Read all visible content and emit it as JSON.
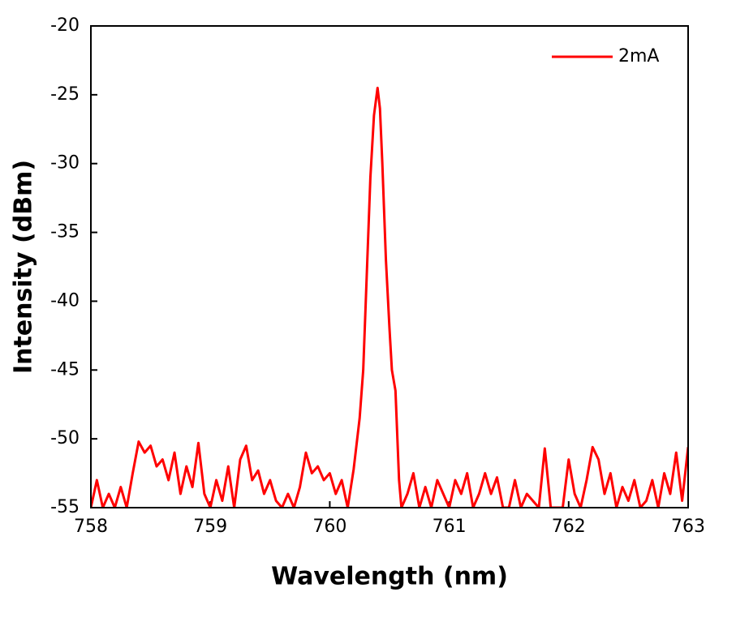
{
  "chart_data": {
    "type": "line",
    "xlabel": "Wavelength (nm)",
    "ylabel": "Intensity (dBm)",
    "x": [
      758.0,
      758.05,
      758.1,
      758.15,
      758.2,
      758.25,
      758.3,
      758.35,
      758.4,
      758.45,
      758.5,
      758.55,
      758.6,
      758.65,
      758.7,
      758.75,
      758.8,
      758.85,
      758.9,
      758.95,
      759.0,
      759.05,
      759.1,
      759.15,
      759.2,
      759.25,
      759.3,
      759.35,
      759.4,
      759.45,
      759.5,
      759.55,
      759.6,
      759.65,
      759.7,
      759.75,
      759.8,
      759.85,
      759.9,
      759.95,
      760.0,
      760.05,
      760.1,
      760.15,
      760.2,
      760.25,
      760.28,
      760.31,
      760.34,
      760.37,
      760.4,
      760.42,
      760.44,
      760.47,
      760.5,
      760.52,
      760.55,
      760.58,
      760.6,
      760.65,
      760.7,
      760.75,
      760.8,
      760.85,
      760.9,
      760.95,
      761.0,
      761.05,
      761.1,
      761.15,
      761.2,
      761.25,
      761.3,
      761.35,
      761.4,
      761.45,
      761.5,
      761.55,
      761.6,
      761.65,
      761.7,
      761.75,
      761.8,
      761.85,
      761.9,
      761.95,
      762.0,
      762.05,
      762.1,
      762.15,
      762.2,
      762.25,
      762.3,
      762.35,
      762.4,
      762.45,
      762.5,
      762.55,
      762.6,
      762.65,
      762.7,
      762.75,
      762.8,
      762.85,
      762.9,
      762.95,
      763.0
    ],
    "series": [
      {
        "name": "2mA",
        "color": "#ff0000",
        "values": [
          -55,
          -53,
          -55,
          -54,
          -55,
          -53.5,
          -55,
          -52.5,
          -50.2,
          -51,
          -50.5,
          -52,
          -51.5,
          -53,
          -51,
          -54,
          -52,
          -53.5,
          -50.3,
          -54,
          -55,
          -53,
          -54.5,
          -52,
          -55,
          -51.5,
          -50.5,
          -53,
          -52.3,
          -54,
          -53,
          -54.5,
          -55,
          -54,
          -55,
          -53.5,
          -51,
          -52.5,
          -52,
          -53,
          -52.5,
          -54,
          -53,
          -55,
          -52.2,
          -48.5,
          -45,
          -38,
          -31,
          -26.5,
          -24.5,
          -26,
          -30,
          -37,
          -42,
          -45,
          -46.5,
          -53,
          -55,
          -54,
          -52.5,
          -55,
          -53.5,
          -55,
          -53,
          -54,
          -55,
          -53,
          -54,
          -52.5,
          -55,
          -54,
          -52.5,
          -54,
          -52.8,
          -55,
          -55,
          -53,
          -55,
          -54,
          -54.5,
          -55,
          -50.7,
          -55,
          -55,
          -55,
          -51.5,
          -54,
          -55,
          -53,
          -50.6,
          -51.5,
          -54,
          -52.5,
          -55,
          -53.5,
          -54.5,
          -53,
          -55,
          -54.5,
          -53,
          -55,
          -52.5,
          -54,
          -51,
          -54.5,
          -50.6
        ]
      }
    ],
    "xlim": [
      758,
      763
    ],
    "xticks": [
      758,
      759,
      760,
      761,
      762,
      763
    ],
    "ylim": [
      -55,
      -20
    ],
    "yticks": [
      -55,
      -50,
      -45,
      -40,
      -35,
      -30,
      -25,
      -20
    ],
    "legend": "upper right"
  }
}
